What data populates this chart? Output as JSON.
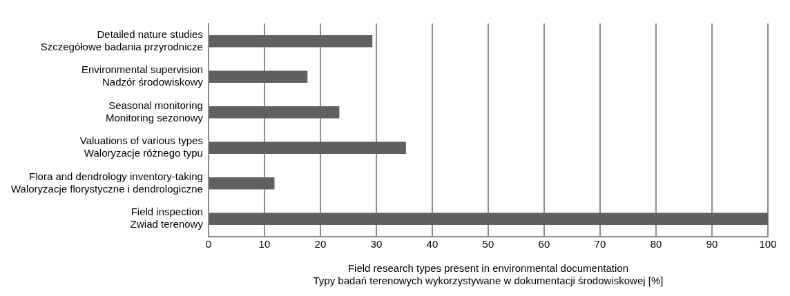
{
  "chart_data": {
    "type": "bar",
    "orientation": "horizontal",
    "categories": [
      "Detailed nature studies\nSzczegółowe badania przyrodnicze",
      "Environmental supervision\nNadzór środowiskowy",
      "Seasonal monitoring\nMonitoring sezonowy",
      "Valuations of various types\nWaloryzacje różnego typu",
      "Flora and dendrology inventory-taking\nWaloryzacje florystyczne i dendrologiczne",
      "Field inspection\nZwiad terenowy"
    ],
    "values": [
      29.3,
      17.7,
      23.4,
      35.3,
      11.8,
      100
    ],
    "color": "#606060",
    "xlabel": "Field research types present in environmental documentation\nTypy badań terenowych wykorzystywane w dokumentacji środowiskowej [%]",
    "xlim": [
      0,
      100
    ],
    "xticks": [
      0,
      10,
      20,
      30,
      40,
      50,
      60,
      70,
      80,
      90,
      100
    ],
    "grid": "x",
    "legend": false
  }
}
